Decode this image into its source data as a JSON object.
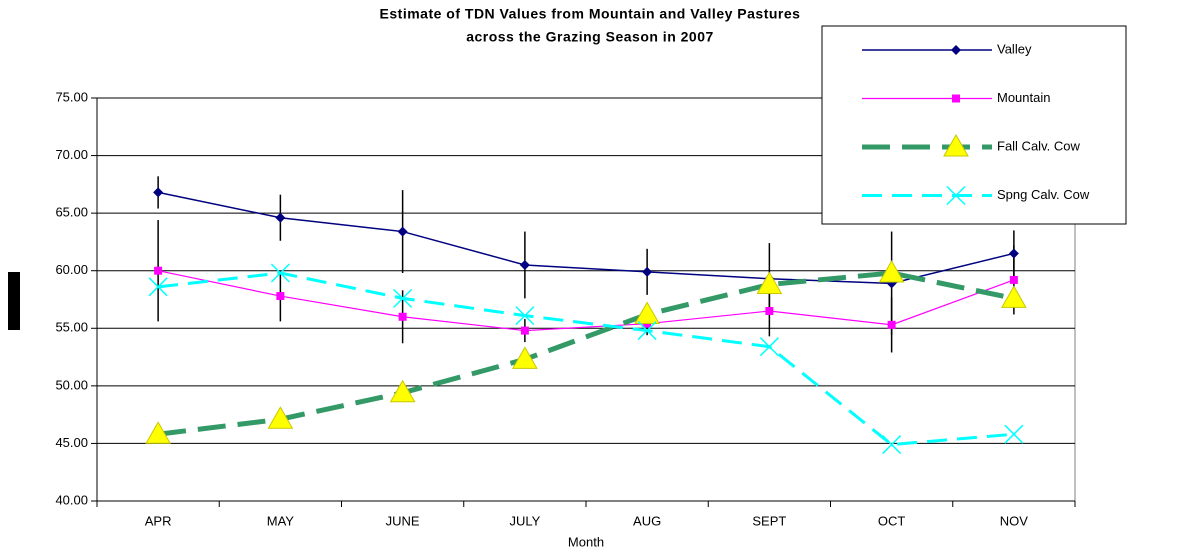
{
  "chart_data": {
    "type": "line",
    "title": [
      "Estimate of TDN Values from Mountain and Valley Pastures",
      "across the Grazing Season in 2007"
    ],
    "x_label": "Month",
    "categories": [
      "APR",
      "MAY",
      "JUNE",
      "JULY",
      "AUG",
      "SEPT",
      "OCT",
      "NOV"
    ],
    "series": [
      {
        "name": "Valley",
        "color": "#000080",
        "marker": "diamond",
        "marker_color": "#000080",
        "dash": false,
        "values": [
          66.8,
          64.6,
          63.4,
          60.5,
          59.9,
          59.3,
          58.9,
          61.5
        ],
        "errors": [
          1.4,
          2.0,
          3.6,
          2.9,
          2.0,
          3.1,
          4.5,
          2.0
        ]
      },
      {
        "name": "Mountain",
        "color": "#ff00ff",
        "marker": "square",
        "marker_color": "#ff00ff",
        "dash": false,
        "values": [
          60.0,
          57.8,
          56.0,
          54.8,
          55.4,
          56.5,
          55.3,
          59.2
        ],
        "errors": [
          4.4,
          2.2,
          2.3,
          1.0,
          1.0,
          2.2,
          2.4,
          3.0
        ]
      },
      {
        "name": "Fall Calv. Cow",
        "color": "#339966",
        "marker": "triangle",
        "marker_color": "#ffff00",
        "dash": true,
        "values": [
          45.8,
          47.1,
          49.4,
          52.3,
          56.2,
          58.8,
          59.8,
          57.6
        ]
      },
      {
        "name": "Spng Calv. Cow",
        "color": "#00ffff",
        "marker": "x",
        "marker_color": "#00ffff",
        "dash": true,
        "values": [
          58.6,
          59.8,
          57.6,
          56.1,
          54.8,
          53.4,
          44.9,
          45.8
        ]
      }
    ],
    "ylim": [
      40,
      75
    ],
    "yticks": [
      {
        "value": 40,
        "label": "40.00"
      },
      {
        "value": 45,
        "label": "45.00"
      },
      {
        "value": 50,
        "label": "50.00"
      },
      {
        "value": 55,
        "label": "55.00"
      },
      {
        "value": 60,
        "label": "60.00"
      },
      {
        "value": 65,
        "label": "65.00"
      },
      {
        "value": 70,
        "label": "70.00"
      },
      {
        "value": 75,
        "label": "75.00"
      }
    ],
    "grid": true,
    "legend": "top-right"
  }
}
